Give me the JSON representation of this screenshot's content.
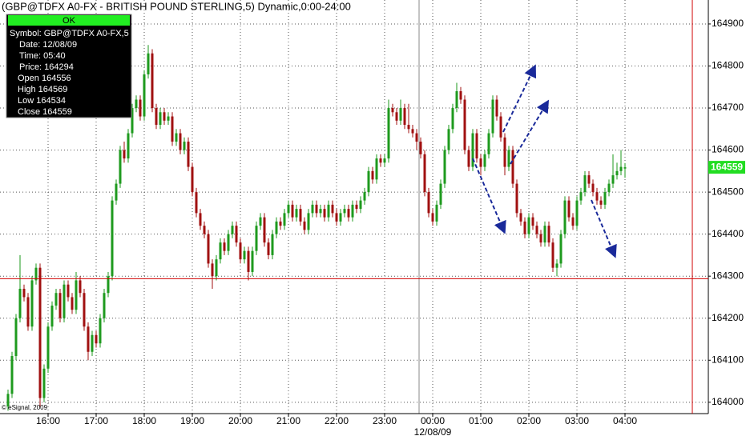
{
  "chart_data": {
    "type": "candlestick",
    "title": "(GBP@TDFX A0-FX - BRITISH POUND STERLING,5) Dynamic,0:00-24:00",
    "categories": [
      null,
      null,
      null,
      null,
      null,
      null,
      null,
      null,
      null,
      null,
      "16:00",
      null,
      null,
      null,
      null,
      null,
      null,
      null,
      null,
      null,
      null,
      null,
      "17:00",
      null,
      null,
      null,
      null,
      null,
      null,
      null,
      null,
      null,
      null,
      null,
      "18:00",
      null,
      null,
      null,
      null,
      null,
      null,
      null,
      null,
      null,
      null,
      null,
      "19:00",
      null,
      null,
      null,
      null,
      null,
      null,
      null,
      null,
      null,
      null,
      null,
      "20:00",
      null,
      null,
      null,
      null,
      null,
      null,
      null,
      null,
      null,
      null,
      null,
      "21:00",
      null,
      null,
      null,
      null,
      null,
      null,
      null,
      null,
      null,
      null,
      null,
      "22:00",
      null,
      null,
      null,
      null,
      null,
      null,
      null,
      null,
      null,
      null,
      null,
      "23:00",
      null,
      null,
      null,
      null,
      null,
      null,
      null,
      null,
      null,
      null,
      null,
      "00:00",
      null,
      null,
      null,
      null,
      null,
      null,
      null,
      null,
      null,
      null,
      null,
      "01:00",
      null,
      null,
      null,
      null,
      null,
      null,
      null,
      null,
      null,
      null,
      null,
      "02:00",
      null,
      null,
      null,
      null,
      null,
      null,
      null,
      null,
      null,
      null,
      null,
      "03:00",
      null,
      null,
      null,
      null,
      null,
      null,
      null,
      null,
      null,
      null,
      null,
      "04:00"
    ],
    "ohlc": [
      [
        163990,
        164030,
        163980,
        164020
      ],
      [
        164020,
        164120,
        164010,
        164110
      ],
      [
        164110,
        164210,
        164100,
        164200
      ],
      [
        164200,
        164350,
        164190,
        164270
      ],
      [
        164270,
        164280,
        164240,
        164250
      ],
      [
        164250,
        164260,
        164170,
        164180
      ],
      [
        164180,
        164300,
        164170,
        164290
      ],
      [
        164290,
        164330,
        164280,
        164320
      ],
      [
        164320,
        164330,
        163990,
        164010
      ],
      [
        164010,
        164090,
        164000,
        164080
      ],
      [
        164080,
        164190,
        164070,
        164180
      ],
      [
        164180,
        164240,
        164170,
        164230
      ],
      [
        164230,
        164270,
        164220,
        164260
      ],
      [
        164260,
        164270,
        164190,
        164200
      ],
      [
        164200,
        164290,
        164190,
        164280
      ],
      [
        164280,
        164290,
        164240,
        164250
      ],
      [
        164250,
        164260,
        164210,
        164220
      ],
      [
        164220,
        164310,
        164210,
        164290
      ],
      [
        164290,
        164300,
        164250,
        164260
      ],
      [
        164260,
        164270,
        164170,
        164180
      ],
      [
        164180,
        164190,
        164100,
        164120
      ],
      [
        164120,
        164170,
        164110,
        164160
      ],
      [
        164160,
        164170,
        164130,
        164140
      ],
      [
        164140,
        164210,
        164130,
        164200
      ],
      [
        164200,
        164270,
        164190,
        164260
      ],
      [
        164260,
        164310,
        164250,
        164300
      ],
      [
        164300,
        164490,
        164290,
        164480
      ],
      [
        164480,
        164530,
        164470,
        164520
      ],
      [
        164520,
        164610,
        164510,
        164600
      ],
      [
        164600,
        164620,
        164570,
        164580
      ],
      [
        164580,
        164650,
        164570,
        164640
      ],
      [
        164640,
        164710,
        164630,
        164700
      ],
      [
        164700,
        164730,
        164690,
        164720
      ],
      [
        164720,
        164730,
        164670,
        164680
      ],
      [
        164680,
        164790,
        164670,
        164780
      ],
      [
        164780,
        164850,
        164770,
        164830
      ],
      [
        164830,
        164840,
        164690,
        164700
      ],
      [
        164700,
        164710,
        164650,
        164660
      ],
      [
        164660,
        164700,
        164650,
        164690
      ],
      [
        164690,
        164700,
        164660,
        164670
      ],
      [
        164670,
        164690,
        164660,
        164680
      ],
      [
        164680,
        164690,
        164610,
        164620
      ],
      [
        164620,
        164650,
        164610,
        164640
      ],
      [
        164640,
        164650,
        164590,
        164600
      ],
      [
        164600,
        164630,
        164590,
        164620
      ],
      [
        164620,
        164630,
        164550,
        164560
      ],
      [
        164560,
        164570,
        164490,
        164500
      ],
      [
        164500,
        164510,
        164440,
        164450
      ],
      [
        164450,
        164460,
        164410,
        164420
      ],
      [
        164420,
        164430,
        164390,
        164400
      ],
      [
        164400,
        164410,
        164320,
        164330
      ],
      [
        164330,
        164340,
        164270,
        164300
      ],
      [
        164300,
        164350,
        164290,
        164340
      ],
      [
        164340,
        164390,
        164330,
        164380
      ],
      [
        164380,
        164390,
        164350,
        164360
      ],
      [
        164360,
        164410,
        164350,
        164400
      ],
      [
        164400,
        164430,
        164390,
        164420
      ],
      [
        164420,
        164430,
        164370,
        164380
      ],
      [
        164380,
        164390,
        164330,
        164340
      ],
      [
        164340,
        164370,
        164330,
        164360
      ],
      [
        164360,
        164370,
        164290,
        164310
      ],
      [
        164310,
        164370,
        164300,
        164360
      ],
      [
        164360,
        164430,
        164350,
        164420
      ],
      [
        164420,
        164450,
        164410,
        164440
      ],
      [
        164440,
        164450,
        164370,
        164380
      ],
      [
        164380,
        164390,
        164340,
        164350
      ],
      [
        164350,
        164410,
        164340,
        164400
      ],
      [
        164400,
        164440,
        164390,
        164430
      ],
      [
        164430,
        164440,
        164410,
        164420
      ],
      [
        164420,
        164460,
        164410,
        164450
      ],
      [
        164450,
        164480,
        164440,
        164470
      ],
      [
        164470,
        164480,
        164430,
        164440
      ],
      [
        164440,
        164470,
        164430,
        164460
      ],
      [
        164460,
        164470,
        164420,
        164430
      ],
      [
        164430,
        164440,
        164400,
        164410
      ],
      [
        164410,
        164460,
        164400,
        164450
      ],
      [
        164450,
        164480,
        164440,
        164470
      ],
      [
        164470,
        164480,
        164440,
        164450
      ],
      [
        164450,
        164470,
        164440,
        164460
      ],
      [
        164460,
        164470,
        164430,
        164440
      ],
      [
        164440,
        164480,
        164430,
        164470
      ],
      [
        164470,
        164480,
        164440,
        164450
      ],
      [
        164450,
        164460,
        164420,
        164430
      ],
      [
        164430,
        164460,
        164420,
        164450
      ],
      [
        164450,
        164470,
        164440,
        164460
      ],
      [
        164460,
        164470,
        164430,
        164440
      ],
      [
        164440,
        164480,
        164430,
        164470
      ],
      [
        164470,
        164480,
        164450,
        164460
      ],
      [
        164460,
        164490,
        164450,
        164480
      ],
      [
        164480,
        164510,
        164470,
        164500
      ],
      [
        164500,
        164560,
        164490,
        164550
      ],
      [
        164550,
        164560,
        164520,
        164530
      ],
      [
        164530,
        164590,
        164520,
        164580
      ],
      [
        164580,
        164590,
        164560,
        164570
      ],
      [
        164570,
        164590,
        164560,
        164580
      ],
      [
        164580,
        164720,
        164570,
        164700
      ],
      [
        164700,
        164710,
        164680,
        164690
      ],
      [
        164690,
        164700,
        164660,
        164670
      ],
      [
        164670,
        164720,
        164660,
        164700
      ],
      [
        164700,
        164710,
        164650,
        164660
      ],
      [
        164660,
        164710,
        164640,
        164650
      ],
      [
        164650,
        164660,
        164630,
        164640
      ],
      [
        164640,
        164650,
        164600,
        164620
      ],
      [
        164620,
        164630,
        164580,
        164590
      ],
      [
        164590,
        164600,
        164490,
        164500
      ],
      [
        164500,
        164510,
        164440,
        164450
      ],
      [
        164450,
        164460,
        164420,
        164430
      ],
      [
        164430,
        164480,
        164420,
        164470
      ],
      [
        164470,
        164530,
        164460,
        164520
      ],
      [
        164520,
        164610,
        164510,
        164600
      ],
      [
        164600,
        164660,
        164590,
        164650
      ],
      [
        164650,
        164710,
        164640,
        164700
      ],
      [
        164700,
        164760,
        164690,
        164740
      ],
      [
        164740,
        164750,
        164710,
        164720
      ],
      [
        164720,
        164730,
        164590,
        164600
      ],
      [
        164600,
        164610,
        164550,
        164560
      ],
      [
        164560,
        164650,
        164550,
        164640
      ],
      [
        164640,
        164650,
        164570,
        164580
      ],
      [
        164580,
        164590,
        164540,
        164560
      ],
      [
        164560,
        164600,
        164550,
        164590
      ],
      [
        164590,
        164650,
        164580,
        164640
      ],
      [
        164640,
        164730,
        164630,
        164720
      ],
      [
        164720,
        164730,
        164670,
        164680
      ],
      [
        164680,
        164690,
        164620,
        164630
      ],
      [
        164630,
        164640,
        164540,
        164560
      ],
      [
        164560,
        164610,
        164550,
        164600
      ],
      [
        164600,
        164610,
        164510,
        164520
      ],
      [
        164520,
        164530,
        164440,
        164450
      ],
      [
        164450,
        164460,
        164420,
        164430
      ],
      [
        164430,
        164440,
        164390,
        164400
      ],
      [
        164400,
        164450,
        164390,
        164440
      ],
      [
        164440,
        164450,
        164410,
        164420
      ],
      [
        164420,
        164430,
        164390,
        164400
      ],
      [
        164400,
        164410,
        164370,
        164380
      ],
      [
        164380,
        164430,
        164370,
        164420
      ],
      [
        164420,
        164430,
        164370,
        164380
      ],
      [
        164380,
        164390,
        164310,
        164320
      ],
      [
        164320,
        164340,
        164300,
        164330
      ],
      [
        164330,
        164410,
        164320,
        164400
      ],
      [
        164400,
        164490,
        164390,
        164480
      ],
      [
        164480,
        164490,
        164430,
        164440
      ],
      [
        164440,
        164450,
        164410,
        164420
      ],
      [
        164420,
        164490,
        164410,
        164480
      ],
      [
        164480,
        164510,
        164470,
        164500
      ],
      [
        164500,
        164550,
        164490,
        164540
      ],
      [
        164540,
        164550,
        164510,
        164520
      ],
      [
        164520,
        164530,
        164490,
        164500
      ],
      [
        164500,
        164510,
        164470,
        164480
      ],
      [
        164480,
        164490,
        164460,
        164470
      ],
      [
        164470,
        164510,
        164460,
        164500
      ],
      [
        164500,
        164530,
        164490,
        164520
      ],
      [
        164520,
        164590,
        164510,
        164540
      ],
      [
        164540,
        164570,
        164530,
        164550
      ],
      [
        164550,
        164600,
        164540,
        164560
      ],
      [
        164556,
        164569,
        164534,
        164559
      ]
    ],
    "ylim": [
      163973,
      164957
    ],
    "yticks": [
      164000,
      164100,
      164200,
      164300,
      164400,
      164500,
      164600,
      164700,
      164800,
      164900
    ],
    "grid": true,
    "up_color": "#1e9a1e",
    "down_color": "#a01010",
    "last_price": 164559,
    "crosshair_price": 164294,
    "date_label": "12/08/09",
    "copyright": "© eSignal, 2009"
  },
  "info_box": {
    "status": "OK",
    "lines": [
      "Symbol: GBP@TDFX A0-FX,5",
      "Date: 12/08/09",
      "Time: 05:40",
      "Price: 164294",
      "Open 164556",
      "High 164569",
      "Low 164534",
      "Close 164559"
    ]
  }
}
